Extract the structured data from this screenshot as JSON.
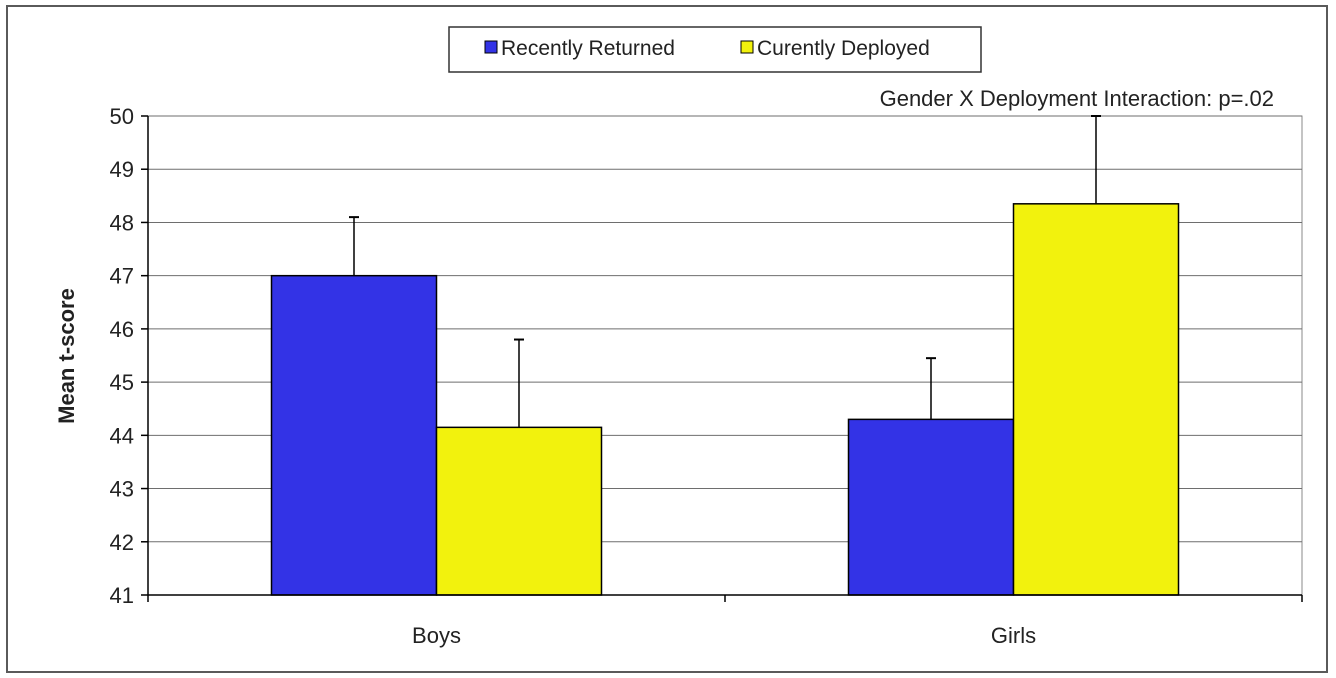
{
  "chart_data": {
    "type": "bar",
    "categories": [
      "Boys",
      "Girls"
    ],
    "series": [
      {
        "name": "Recently Returned",
        "color": "#3333e6",
        "values": [
          47.0,
          44.3
        ],
        "error_upper": [
          48.1,
          45.45
        ]
      },
      {
        "name": "Curently Deployed",
        "color": "#f2f20d",
        "values": [
          44.15,
          48.35
        ],
        "error_upper": [
          45.8,
          50.0
        ]
      }
    ],
    "title": "",
    "annotation": "Gender X Deployment Interaction: p=.02",
    "xlabel": "",
    "ylabel": "Mean t-score",
    "ylim": [
      41,
      50
    ],
    "yticks": [
      "41",
      "42",
      "43",
      "44",
      "45",
      "46",
      "47",
      "48",
      "49",
      "50"
    ],
    "grid": true,
    "legend_position": "top"
  }
}
